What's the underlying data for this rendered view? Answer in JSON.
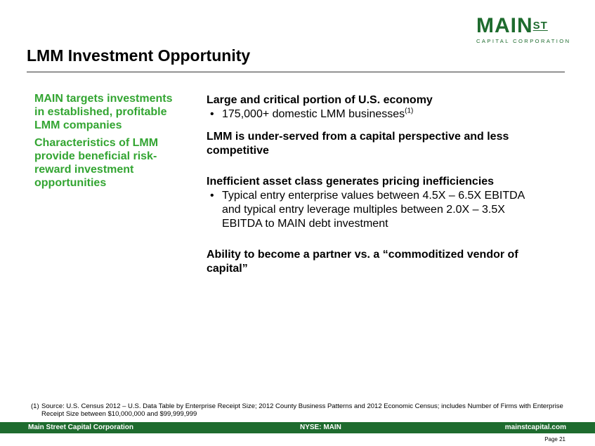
{
  "logo": {
    "main": "MAIN",
    "st": "ST",
    "sub": "CAPITAL CORPORATION"
  },
  "title": "LMM Investment Opportunity",
  "left_items": [
    "MAIN targets investments in established, profitable LMM companies",
    "Characteristics of LMM provide beneficial risk-reward investment opportunities"
  ],
  "sections": [
    {
      "heading": "Large and critical portion of U.S. economy",
      "bullets": [
        {
          "text": "175,000+ domestic LMM businesses",
          "sup": "(1)"
        }
      ]
    },
    {
      "heading": "LMM is under-served from a capital perspective and less competitive",
      "bullets": []
    },
    {
      "heading": "Inefficient asset class generates pricing inefficiencies",
      "bullets": [
        {
          "text": "Typical entry enterprise values between 4.5X – 6.5X EBITDA and typical entry leverage multiples between 2.0X – 3.5X EBITDA to MAIN debt investment",
          "sup": ""
        }
      ]
    },
    {
      "heading": "Ability to become a partner vs. a “commoditized vendor of capital”",
      "bullets": []
    }
  ],
  "footnote": {
    "label": "(1)",
    "text": "Source: U.S. Census 2012 – U.S. Data Table by Enterprise Receipt Size; 2012 County Business Patterns and 2012 Economic Census; includes Number of Firms with Enterprise Receipt Size between $10,000,000 and $99,999,999"
  },
  "footer": {
    "left": "Main Street Capital Corporation",
    "center": "NYSE: MAIN",
    "right": "mainstcapital.com"
  },
  "page": "Page  21",
  "colors": {
    "brand_green": "#1e6b2e",
    "accent_green": "#33a532"
  },
  "bullet_char": "•"
}
